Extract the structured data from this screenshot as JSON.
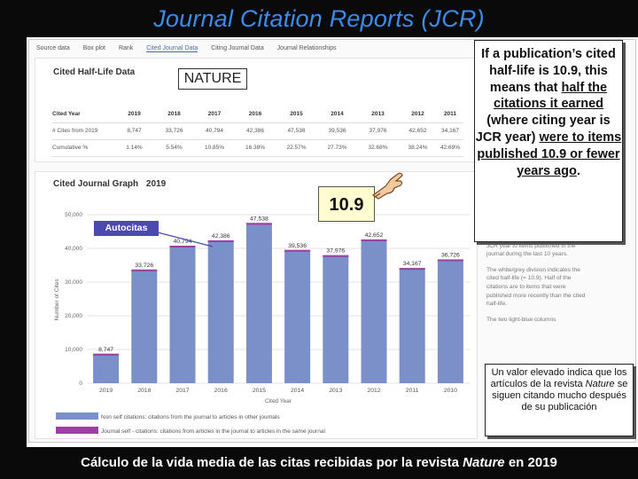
{
  "title": "Journal Citation Reports (JCR)",
  "tabs": [
    "Source data",
    "Box plot",
    "Rank",
    "Cited Journal Data",
    "Citing Journal Data",
    "Journal Relationships"
  ],
  "active_tab": "Cited Journal Data",
  "half_life": {
    "title": "Cited Half-Life Data",
    "journal": "NATURE",
    "columns": [
      "Cited Year",
      "2019",
      "2018",
      "2017",
      "2016",
      "2015",
      "2014",
      "2013",
      "2012",
      "2011"
    ],
    "rows": [
      {
        "label": "# Cites from 2019",
        "cells": [
          "8,747",
          "33,726",
          "40,794",
          "42,386",
          "47,538",
          "39,536",
          "37,976",
          "42,652",
          "34,167"
        ]
      },
      {
        "label": "Cumulative %",
        "cells": [
          "1.14%",
          "5.54%",
          "10.85%",
          "16.38%",
          "22.57%",
          "27.73%",
          "32.68%",
          "38.24%",
          "42.69%"
        ]
      }
    ]
  },
  "graph": {
    "title": "Cited Journal Graph",
    "year": "2019"
  },
  "legend": {
    "non_self": "Non self citations: citations from the journal to articles in other journals",
    "self": "Journal self - citations: citations from articles in the journal to articles in the same journal",
    "non_self_color": "#7b8fc9",
    "self_color": "#9b3fa0"
  },
  "chart_data": {
    "type": "bar",
    "categories": [
      "2019",
      "2018",
      "2017",
      "2016",
      "2015",
      "2014",
      "2013",
      "2012",
      "2011",
      "2010"
    ],
    "series": [
      {
        "values": [
          8747,
          33726,
          40794,
          42386,
          47538,
          39536,
          37976,
          42652,
          34167,
          36726
        ]
      }
    ],
    "data_labels": [
      "8,747",
      "33,726",
      "40,794",
      "42,386",
      "47,538",
      "39,536",
      "37,976",
      "42,652",
      "34,167",
      "36,726"
    ],
    "title": "",
    "xlabel": "Cited Year",
    "ylabel": "Number of Cites",
    "ylim": [
      0,
      50000
    ],
    "yticks": [
      "0",
      "10,000",
      "20,000",
      "30,000",
      "40,000",
      "50,000"
    ],
    "grid": true
  },
  "sidebar_text": [
    "citation published in journals during the JCR year to items published in the journal during the last 10 years.",
    "The white/grey division indicates the cited half-life (= 10.9). Half of the citations are to items that were published more recently than the cited half-life.",
    "The two light-blue columns"
  ],
  "annotations": {
    "value_box": "10.9",
    "autocitas": "Autocitas",
    "callout_main": {
      "part1": "If a publication’s cited half-life is 10.9, this means that ",
      "part2": "half the citations it earned",
      "part3": " (where citing year is JCR year) ",
      "part4": "were to items published 10.9 or fewer years ago",
      "part5": "."
    },
    "callout_small": {
      "part1": "Un valor elevado indica que los artículos de la revista ",
      "italic": "Nature",
      "part2": " se siguen citando mucho después de su publicación"
    }
  },
  "caption": {
    "part1": "Cálculo de la vida media de las citas recibidas por la revista ",
    "italic": "Nature",
    "part2": " en 2019"
  },
  "colors": {
    "title": "#3b8ce8",
    "bar": "#7b8fc9",
    "bar_top": "#9b3fa0",
    "callout_label": "#4a4ab0"
  }
}
